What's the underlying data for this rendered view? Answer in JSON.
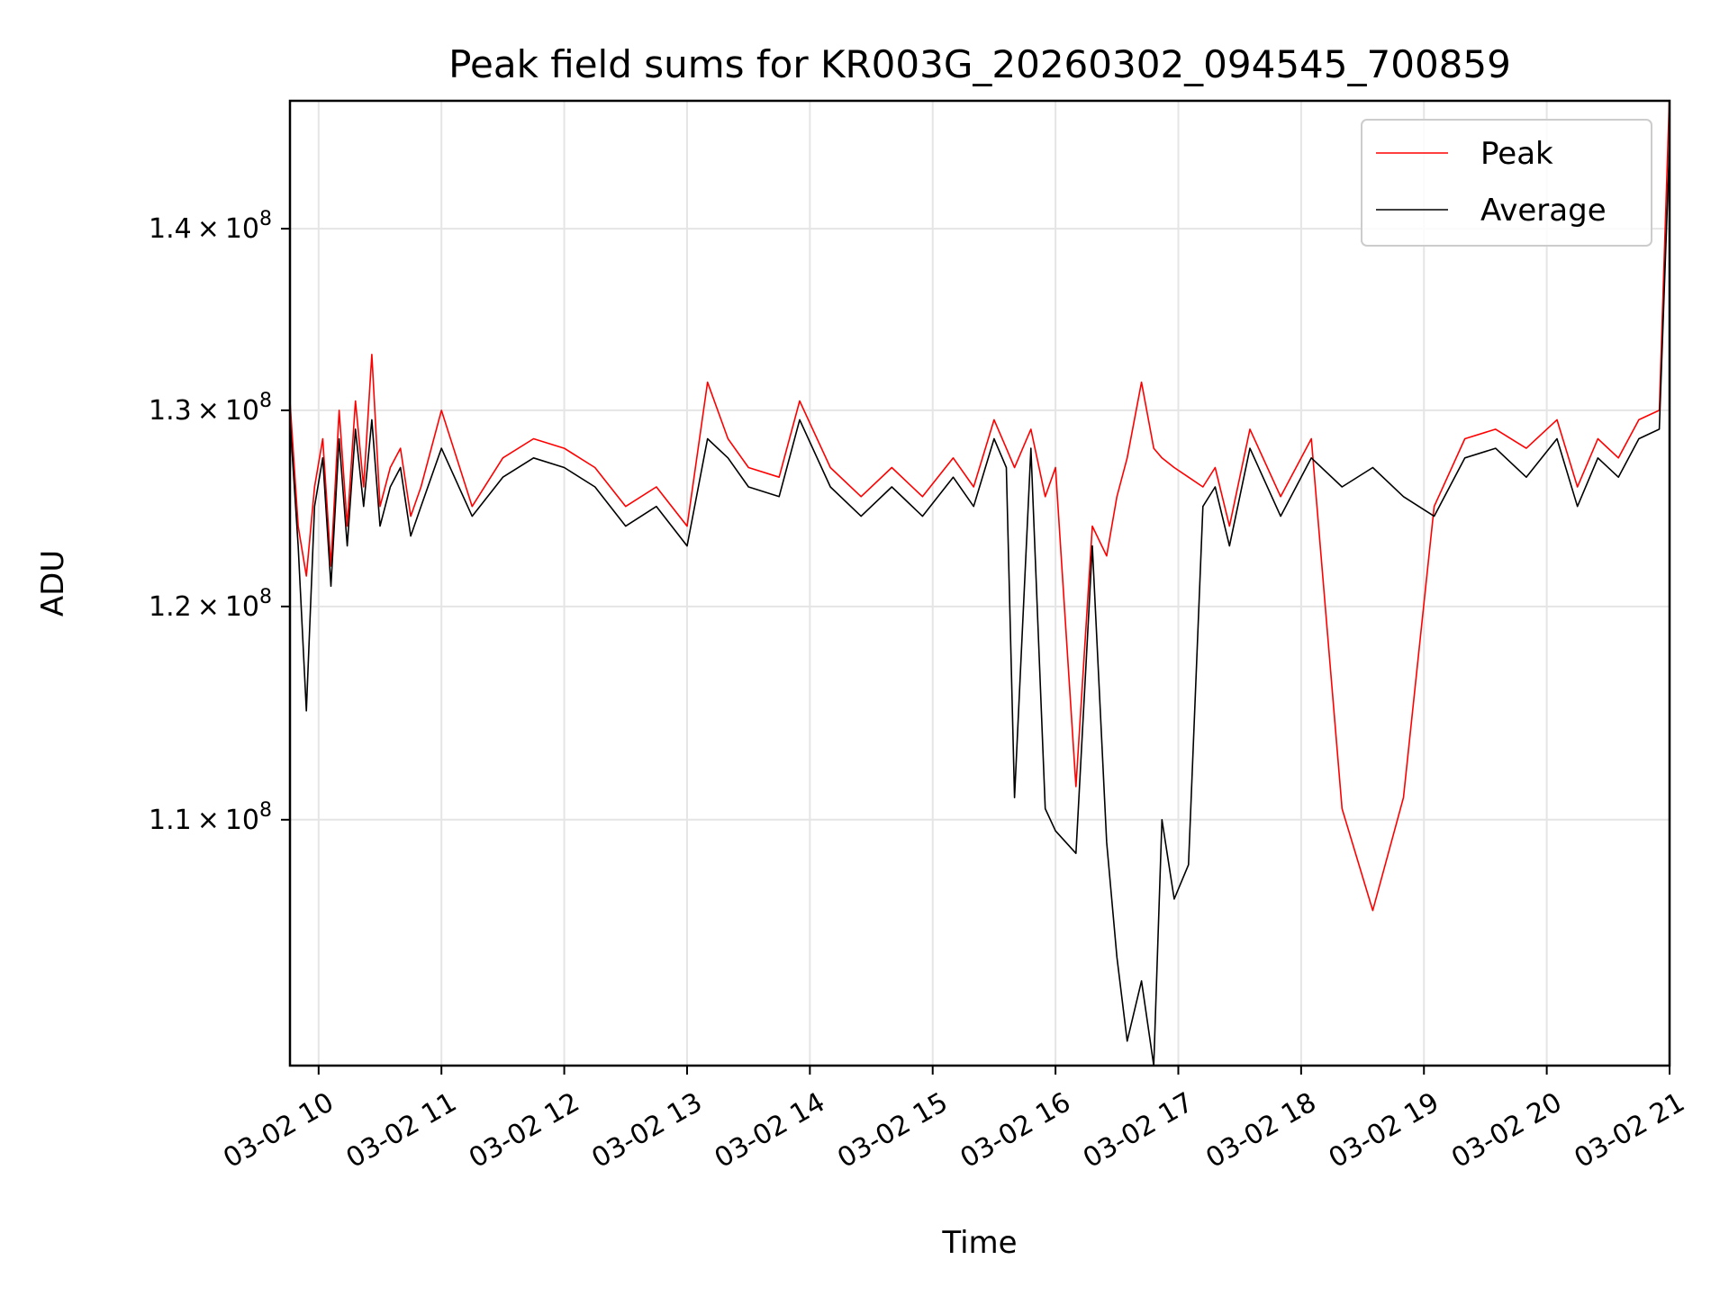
{
  "chart_data": {
    "type": "line",
    "title": "Peak field sums for KR003G_20260302_094545_700859",
    "xlabel": "Time",
    "ylabel": "ADU",
    "yscale": "log",
    "xlim": [
      "03-02 09:46",
      "03-02 21:00"
    ],
    "ylim": [
      99500000,
      147500000
    ],
    "grid": true,
    "legend_position": "upper right",
    "x_ticks": [
      {
        "label": "03-02 10",
        "value": "03-02 10:00"
      },
      {
        "label": "03-02 11",
        "value": "03-02 11:00"
      },
      {
        "label": "03-02 12",
        "value": "03-02 12:00"
      },
      {
        "label": "03-02 13",
        "value": "03-02 13:00"
      },
      {
        "label": "03-02 14",
        "value": "03-02 14:00"
      },
      {
        "label": "03-02 15",
        "value": "03-02 15:00"
      },
      {
        "label": "03-02 16",
        "value": "03-02 16:00"
      },
      {
        "label": "03-02 17",
        "value": "03-02 17:00"
      },
      {
        "label": "03-02 18",
        "value": "03-02 18:00"
      },
      {
        "label": "03-02 19",
        "value": "03-02 19:00"
      },
      {
        "label": "03-02 20",
        "value": "03-02 20:00"
      },
      {
        "label": "03-02 21",
        "value": "03-02 21:00"
      }
    ],
    "y_ticks": [
      {
        "mantissa": "1.1",
        "exponent": "8",
        "value": 110000000
      },
      {
        "mantissa": "1.2",
        "exponent": "8",
        "value": 120000000
      },
      {
        "mantissa": "1.3",
        "exponent": "8",
        "value": 130000000
      },
      {
        "mantissa": "1.4",
        "exponent": "8",
        "value": 140000000
      }
    ],
    "series": [
      {
        "name": "Peak",
        "color": "#ff0000",
        "x": [
          "03-02 09:46",
          "03-02 09:50",
          "03-02 09:54",
          "03-02 09:58",
          "03-02 10:02",
          "03-02 10:06",
          "03-02 10:10",
          "03-02 10:14",
          "03-02 10:18",
          "03-02 10:22",
          "03-02 10:26",
          "03-02 10:30",
          "03-02 10:35",
          "03-02 10:40",
          "03-02 10:45",
          "03-02 10:50",
          "03-02 11:00",
          "03-02 11:15",
          "03-02 11:30",
          "03-02 11:45",
          "03-02 12:00",
          "03-02 12:15",
          "03-02 12:30",
          "03-02 12:45",
          "03-02 13:00",
          "03-02 13:10",
          "03-02 13:20",
          "03-02 13:30",
          "03-02 13:45",
          "03-02 13:55",
          "03-02 14:10",
          "03-02 14:25",
          "03-02 14:40",
          "03-02 14:55",
          "03-02 15:10",
          "03-02 15:20",
          "03-02 15:30",
          "03-02 15:36",
          "03-02 15:40",
          "03-02 15:48",
          "03-02 15:55",
          "03-02 16:00",
          "03-02 16:10",
          "03-02 16:18",
          "03-02 16:25",
          "03-02 16:30",
          "03-02 16:35",
          "03-02 16:42",
          "03-02 16:48",
          "03-02 16:52",
          "03-02 16:58",
          "03-02 17:05",
          "03-02 17:12",
          "03-02 17:18",
          "03-02 17:25",
          "03-02 17:35",
          "03-02 17:50",
          "03-02 18:05",
          "03-02 18:20",
          "03-02 18:35",
          "03-02 18:50",
          "03-02 19:05",
          "03-02 19:20",
          "03-02 19:35",
          "03-02 19:50",
          "03-02 20:05",
          "03-02 20:15",
          "03-02 20:25",
          "03-02 20:35",
          "03-02 20:45",
          "03-02 20:55",
          "03-02 21:00"
        ],
        "y": [
          130500000,
          124000000,
          121500000,
          126000000,
          128500000,
          122000000,
          130000000,
          124000000,
          130500000,
          126000000,
          133000000,
          125000000,
          127000000,
          128000000,
          124500000,
          126000000,
          130000000,
          125000000,
          127500000,
          128500000,
          128000000,
          127000000,
          125000000,
          126000000,
          124000000,
          131500000,
          128500000,
          127000000,
          126500000,
          130500000,
          127000000,
          125500000,
          127000000,
          125500000,
          127500000,
          126000000,
          129500000,
          128000000,
          127000000,
          129000000,
          125500000,
          127000000,
          111500000,
          124000000,
          122500000,
          125500000,
          127500000,
          131500000,
          128000000,
          127500000,
          127000000,
          126500000,
          126000000,
          127000000,
          124000000,
          129000000,
          125500000,
          128500000,
          110500000,
          106000000,
          111000000,
          125000000,
          128500000,
          129000000,
          128000000,
          129500000,
          126000000,
          128500000,
          127500000,
          129500000,
          130000000,
          148000000
        ]
      },
      {
        "name": "Average",
        "color": "#000000",
        "x": [
          "03-02 09:46",
          "03-02 09:50",
          "03-02 09:54",
          "03-02 09:58",
          "03-02 10:02",
          "03-02 10:06",
          "03-02 10:10",
          "03-02 10:14",
          "03-02 10:18",
          "03-02 10:22",
          "03-02 10:26",
          "03-02 10:30",
          "03-02 10:35",
          "03-02 10:40",
          "03-02 10:45",
          "03-02 10:50",
          "03-02 11:00",
          "03-02 11:15",
          "03-02 11:30",
          "03-02 11:45",
          "03-02 12:00",
          "03-02 12:15",
          "03-02 12:30",
          "03-02 12:45",
          "03-02 13:00",
          "03-02 13:10",
          "03-02 13:20",
          "03-02 13:30",
          "03-02 13:45",
          "03-02 13:55",
          "03-02 14:10",
          "03-02 14:25",
          "03-02 14:40",
          "03-02 14:55",
          "03-02 15:10",
          "03-02 15:20",
          "03-02 15:30",
          "03-02 15:36",
          "03-02 15:40",
          "03-02 15:48",
          "03-02 15:55",
          "03-02 16:00",
          "03-02 16:10",
          "03-02 16:18",
          "03-02 16:25",
          "03-02 16:30",
          "03-02 16:35",
          "03-02 16:42",
          "03-02 16:48",
          "03-02 16:52",
          "03-02 16:58",
          "03-02 17:05",
          "03-02 17:12",
          "03-02 17:18",
          "03-02 17:25",
          "03-02 17:35",
          "03-02 17:50",
          "03-02 18:05",
          "03-02 18:20",
          "03-02 18:35",
          "03-02 18:50",
          "03-02 19:05",
          "03-02 19:20",
          "03-02 19:35",
          "03-02 19:50",
          "03-02 20:05",
          "03-02 20:15",
          "03-02 20:25",
          "03-02 20:35",
          "03-02 20:45",
          "03-02 20:55",
          "03-02 21:00"
        ],
        "y": [
          129500000,
          123000000,
          115000000,
          125000000,
          127500000,
          121000000,
          128500000,
          123000000,
          129000000,
          125000000,
          129500000,
          124000000,
          126000000,
          127000000,
          123500000,
          125000000,
          128000000,
          124500000,
          126500000,
          127500000,
          127000000,
          126000000,
          124000000,
          125000000,
          123000000,
          128500000,
          127500000,
          126000000,
          125500000,
          129500000,
          126000000,
          124500000,
          126000000,
          124500000,
          126500000,
          125000000,
          128500000,
          127000000,
          111000000,
          128000000,
          110500000,
          109500000,
          108500000,
          123000000,
          109000000,
          104000000,
          100500000,
          103000000,
          99500000,
          110000000,
          106500000,
          108000000,
          125000000,
          126000000,
          123000000,
          128000000,
          124500000,
          127500000,
          126000000,
          127000000,
          125500000,
          124500000,
          127500000,
          128000000,
          126500000,
          128500000,
          125000000,
          127500000,
          126500000,
          128500000,
          129000000,
          145000000
        ]
      }
    ]
  }
}
